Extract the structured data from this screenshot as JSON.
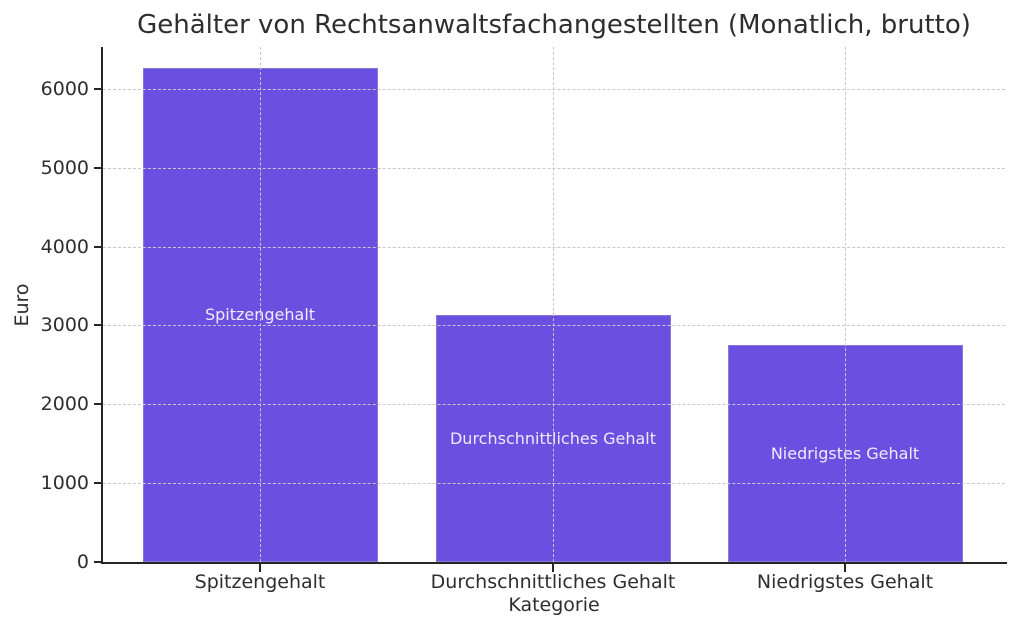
{
  "chart_data": {
    "type": "bar",
    "title": "Gehälter von Rechtsanwaltsfachangestellten (Monatlich, brutto)",
    "xlabel": "Kategorie",
    "ylabel": "Euro",
    "categories": [
      "Spitzengehalt",
      "Durchschnittliches Gehalt",
      "Niedrigstes Gehalt"
    ],
    "values": [
      6270,
      3130,
      2750
    ],
    "bar_labels": [
      "Spitzengehalt",
      "Durchschnittliches Gehalt",
      "Niedrigstes Gehalt"
    ],
    "ylim": [
      0,
      6530
    ],
    "yticks": [
      0,
      1000,
      2000,
      3000,
      4000,
      5000,
      6000
    ],
    "grid": true,
    "grid_style": "dashed",
    "grid_over_bars": true,
    "legend_position": "none",
    "bar_color": "#6B4FE1",
    "bar_edge_color": "#8578D8",
    "bar_label_color": "#EFEBFA",
    "grid_color": "#C8C8C8",
    "axis_color": "#262626",
    "text_color": "#2E2E2E",
    "background_color": "#FFFFFF"
  }
}
